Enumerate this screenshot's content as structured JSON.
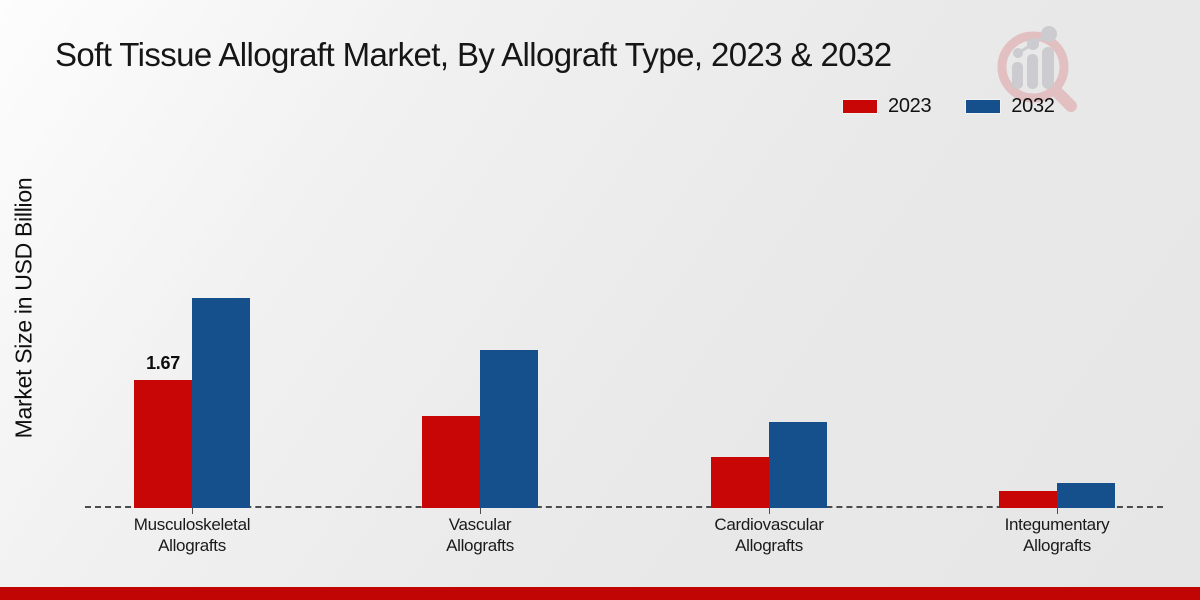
{
  "chart_data": {
    "type": "bar",
    "title": "Soft Tissue Allograft Market, By Allograft Type, 2023 & 2032",
    "ylabel": "Market Size in USD Billion",
    "xlabel": "",
    "categories": [
      "Musculoskeletal Allografts",
      "Vascular Allografts",
      "Cardiovascular Allografts",
      "Integumentary Allografts"
    ],
    "series": [
      {
        "name": "2023",
        "color": "#c90606",
        "values": [
          1.67,
          1.2,
          0.67,
          0.22
        ],
        "value_labels": [
          "1.67",
          "",
          "",
          ""
        ]
      },
      {
        "name": "2032",
        "color": "#15508d",
        "values": [
          2.74,
          2.06,
          1.12,
          0.33
        ],
        "value_labels": [
          "",
          "",
          "",
          ""
        ]
      }
    ],
    "ylim": [
      0,
      3
    ],
    "grid": false,
    "legend_position": "top-right",
    "baseline_style": "dashed"
  },
  "branding": {
    "logo_icon": "magnifier-bar-chart-logo",
    "logo_ring_color": "#e2bfc1",
    "logo_chart_color": "#cbcbd0",
    "footer_bar_color": "#c10404"
  }
}
